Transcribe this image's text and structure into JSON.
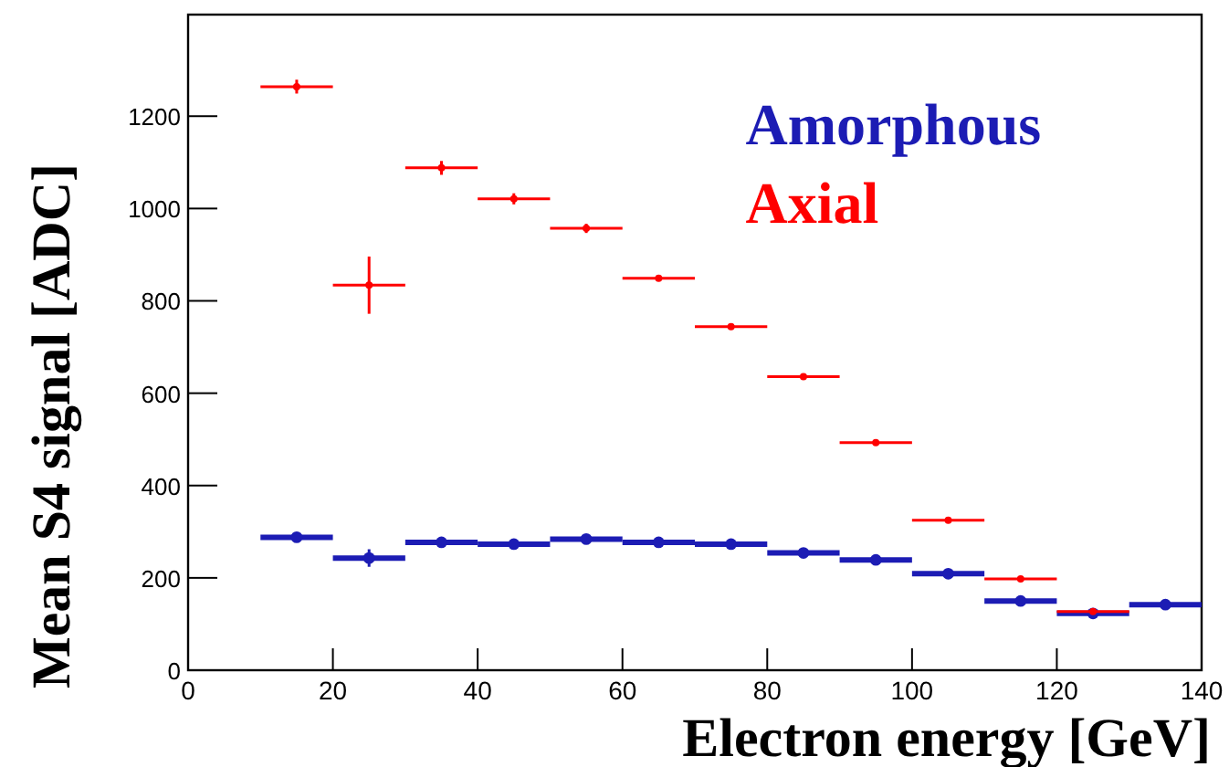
{
  "chart_data": {
    "type": "scatter",
    "xlabel": "Electron energy [GeV]",
    "ylabel": "Mean S4 signal [ADC]",
    "xlim": [
      0,
      140
    ],
    "ylim": [
      0,
      1420
    ],
    "xticks": [
      0,
      20,
      40,
      60,
      80,
      100,
      120,
      140
    ],
    "yticks": [
      0,
      200,
      400,
      600,
      800,
      1000,
      1200
    ],
    "x": [
      15,
      25,
      35,
      45,
      55,
      65,
      75,
      85,
      95,
      105,
      115,
      125,
      135
    ],
    "marker": "circle",
    "legend": "top right",
    "grid": false,
    "series": [
      {
        "name": "Amorphous",
        "color": "#1c1cb4",
        "values": [
          288,
          243,
          277,
          273,
          284,
          277,
          273,
          254,
          239,
          209,
          150,
          123,
          142
        ],
        "errors": [
          5,
          19,
          5,
          5,
          5,
          5,
          5,
          4,
          4,
          3,
          3,
          4,
          6
        ],
        "xerrors": [
          5,
          5,
          5,
          5,
          5,
          5,
          5,
          5,
          5,
          5,
          5,
          5,
          5
        ]
      },
      {
        "name": "Axial",
        "color": "#ff0000",
        "values": [
          1264,
          834,
          1088,
          1021,
          957,
          849,
          744,
          636,
          493,
          325,
          198,
          127,
          null
        ],
        "errors": [
          15,
          62,
          15,
          12,
          10,
          6,
          6,
          6,
          6,
          4,
          4,
          4,
          null
        ],
        "xerrors": [
          5,
          5,
          5,
          5,
          5,
          5,
          5,
          5,
          5,
          5,
          5,
          5,
          null
        ]
      }
    ]
  }
}
